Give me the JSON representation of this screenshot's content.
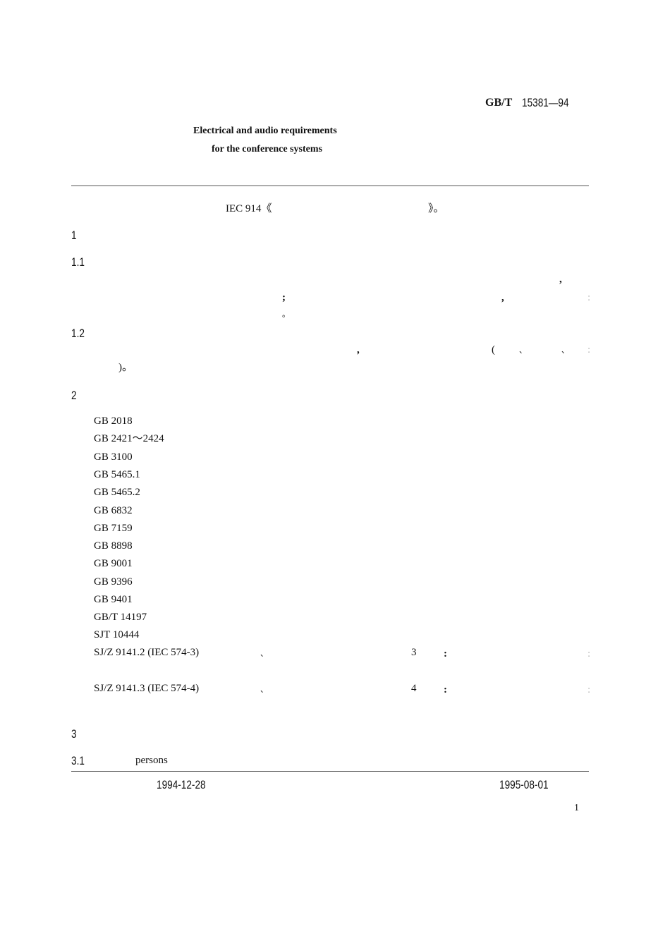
{
  "header": {
    "std_prefix": "GB/T",
    "std_number": "15381—94"
  },
  "title": {
    "line1": "Electrical and audio requirements",
    "line2": "for the conference systems"
  },
  "intro": {
    "ref": "IEC 914《",
    "close": "》。"
  },
  "sections": {
    "s1": "1",
    "s1_1": "1.1",
    "s1_2": "1.2",
    "s2": "2",
    "s3": "3",
    "s3_1": "3.1",
    "s3_1_text": "persons"
  },
  "punct": {
    "comma": ",",
    "semicolon": ";",
    "colon": ":",
    "period": "。",
    "lparen": "(",
    "dun": "、",
    "rparen_period": ")。"
  },
  "references": [
    "GB 2018",
    "GB 2421～2424",
    "GB 3100",
    "GB 5465.1",
    "GB 5465.2",
    "GB 6832",
    "GB 7159",
    "GB 8898",
    "GB 9001",
    "GB 9396",
    "GB 9401",
    "GB/T 14197",
    "SJT 10444"
  ],
  "references_iec": [
    {
      "code": "SJ/Z 9141.2 (IEC 574-3)",
      "part": "3"
    },
    {
      "code": "SJ/Z 9141.3 (IEC 574-4)",
      "part": "4"
    }
  ],
  "footer": {
    "issue_date": "1994-12-28",
    "implement_date": "1995-08-01",
    "page_number": "1"
  }
}
